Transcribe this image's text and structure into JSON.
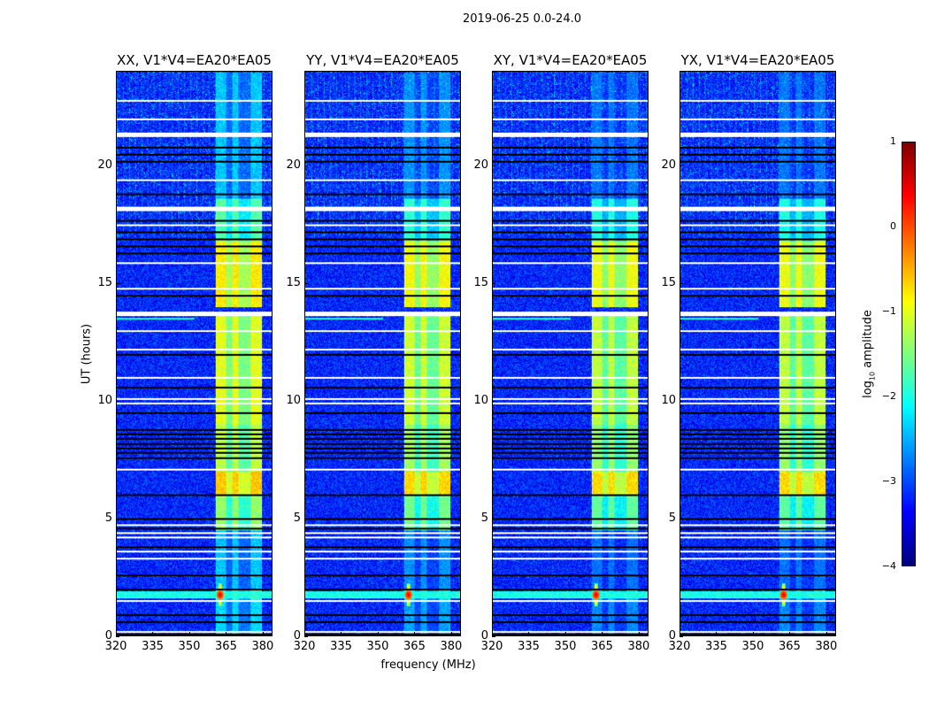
{
  "chart_data": {
    "type": "heatmap",
    "title": "2019-06-25 0.0-24.0",
    "xlabel": "frequency (MHz)",
    "ylabel": "UT (hours)",
    "xlim": [
      320,
      384
    ],
    "ylim": [
      0,
      24
    ],
    "xticks": [
      "320",
      "335",
      "350",
      "365",
      "380"
    ],
    "yticks": [
      "0",
      "5",
      "10",
      "15",
      "20"
    ],
    "colormap": "jet",
    "colorbar": {
      "label": "log10 amplitude",
      "label_main": "log",
      "label_sub": "10",
      "label_rest": " amplitude",
      "range": [
        -4,
        1
      ],
      "ticks": [
        "1",
        "0",
        "−1",
        "−2",
        "−3",
        "−4"
      ]
    },
    "panels": [
      {
        "title": "XX, V1*V4=EA20*EA05",
        "band_gain": 1.0
      },
      {
        "title": "YY, V1*V4=EA20*EA05",
        "band_gain": 0.9
      },
      {
        "title": "XY, V1*V4=EA20*EA05",
        "band_gain": 0.85
      },
      {
        "title": "YX, V1*V4=EA20*EA05",
        "band_gain": 0.85
      }
    ],
    "background_log_amp": -3.2,
    "band_mhz": [
      360.5,
      380
    ],
    "band_subchannels_mhz": [
      [
        360.5,
        365
      ],
      [
        365,
        367.5,
        "dim"
      ],
      [
        367.5,
        370.2
      ],
      [
        370.2,
        375.2,
        "dim"
      ],
      [
        375.2,
        380
      ]
    ],
    "time_segments": [
      {
        "t": [
          0,
          1.5
        ],
        "band": -2.3
      },
      {
        "t": [
          1.5,
          2.0
        ],
        "band": -2.0
      },
      {
        "t": [
          2.0,
          4.5
        ],
        "band": -2.4
      },
      {
        "t": [
          4.5,
          6.0
        ],
        "band": -1.4
      },
      {
        "t": [
          6.0,
          7.0
        ],
        "band": -0.6
      },
      {
        "t": [
          7.0,
          9.0
        ],
        "band": -1.2
      },
      {
        "t": [
          9.0,
          12.5
        ],
        "band": -1.0
      },
      {
        "t": [
          12.5,
          13.6
        ],
        "band": -1.0
      },
      {
        "t": [
          14.0,
          16.8
        ],
        "band": -0.8
      },
      {
        "t": [
          16.8,
          18.6
        ],
        "band": -1.7
      },
      {
        "t": [
          18.6,
          24
        ],
        "band": -2.4
      }
    ],
    "rfi_features": [
      {
        "t": 1.75,
        "freq_mhz": 362.5,
        "log_amp": 0.6
      },
      {
        "t": [
          1.6,
          1.9
        ],
        "broadband_log_amp": -2.0
      },
      {
        "t": [
          13.45,
          13.55
        ],
        "freq_mhz": [
          320,
          352
        ],
        "log_amp": -2.0
      }
    ],
    "flagged_rows_hours": [
      0.2,
      1.5,
      3.3,
      3.6,
      4.2,
      4.4,
      4.75,
      7.1,
      9.9,
      10.1,
      11.0,
      12.2,
      13.0,
      13.8,
      14.8,
      15.9,
      17.5,
      18.25,
      19.4,
      21.4,
      22.0,
      22.8
    ],
    "zero_rows_hours": [
      0.0,
      0.6,
      0.9,
      2.0,
      2.6,
      3.8,
      4.6,
      5.0,
      6.0,
      7.6,
      7.8,
      8.0,
      8.2,
      8.4,
      8.6,
      8.8,
      9.5,
      10.6,
      12.0,
      14.5,
      16.3,
      16.6,
      16.9,
      17.2,
      17.7,
      18.8,
      20.2,
      20.5,
      20.8
    ]
  }
}
